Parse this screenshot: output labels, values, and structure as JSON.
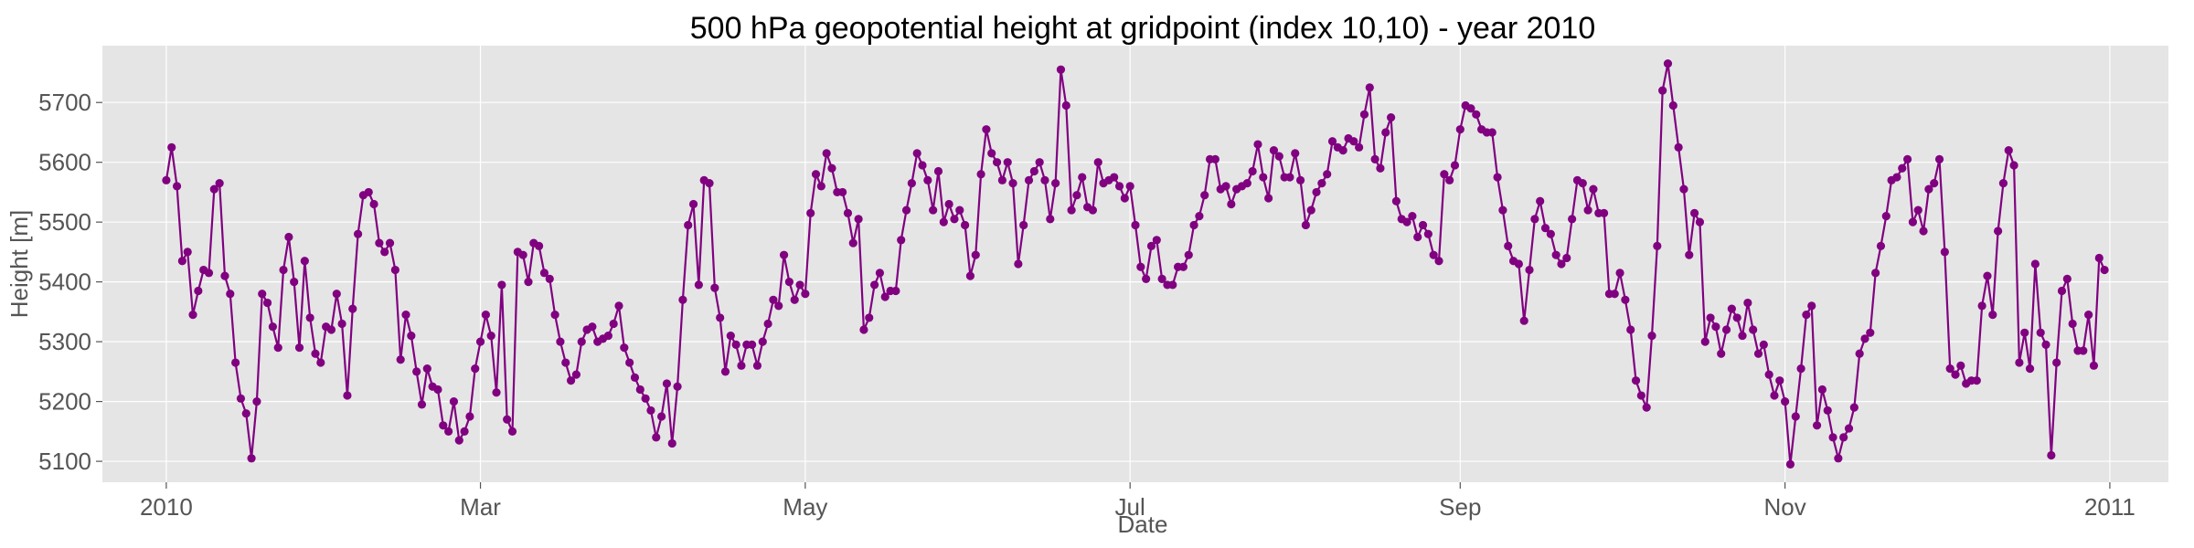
{
  "chart_data": {
    "type": "line",
    "title": "500 hPa geopotential height at gridpoint (index 10,10) - year 2010",
    "xlabel": "Date",
    "ylabel": "Height [m]",
    "x_start": "2010-01-01",
    "x_end": "2010-12-31",
    "xlim": [
      "2009-12-20",
      "2011-01-12"
    ],
    "ylim": [
      5065,
      5795
    ],
    "x_ticks": [
      {
        "date": "2010-01-01",
        "label": "2010"
      },
      {
        "date": "2010-03-01",
        "label": "Mar"
      },
      {
        "date": "2010-05-01",
        "label": "May"
      },
      {
        "date": "2010-07-01",
        "label": "Jul"
      },
      {
        "date": "2010-09-01",
        "label": "Sep"
      },
      {
        "date": "2010-11-01",
        "label": "Nov"
      },
      {
        "date": "2011-01-01",
        "label": "2011"
      }
    ],
    "y_ticks": [
      5100,
      5200,
      5300,
      5400,
      5500,
      5600,
      5700
    ],
    "grid": true,
    "marker": "circle",
    "color": "#800080",
    "background": "#e5e5e5",
    "series": [
      {
        "values": [
          5570,
          5625,
          5560,
          5435,
          5450,
          5345,
          5385,
          5420,
          5415,
          5555,
          5565,
          5410,
          5380,
          5265,
          5205,
          5180,
          5105,
          5200,
          5380,
          5365,
          5325,
          5290,
          5420,
          5475,
          5400,
          5290,
          5435,
          5340,
          5280,
          5265,
          5325,
          5320,
          5380,
          5330,
          5210,
          5355,
          5480,
          5545,
          5550,
          5530,
          5465,
          5450,
          5465,
          5420,
          5270,
          5345,
          5310,
          5250,
          5195,
          5255,
          5225,
          5220,
          5160,
          5150,
          5200,
          5135,
          5150,
          5175,
          5255,
          5300,
          5345,
          5310,
          5215,
          5395,
          5170,
          5150,
          5450,
          5445,
          5400,
          5465,
          5460,
          5415,
          5405,
          5345,
          5300,
          5265,
          5235,
          5245,
          5300,
          5320,
          5325,
          5300,
          5305,
          5310,
          5330,
          5360,
          5290,
          5265,
          5240,
          5220,
          5205,
          5185,
          5140,
          5175,
          5230,
          5130,
          5225,
          5370,
          5495,
          5530,
          5395,
          5570,
          5565,
          5390,
          5340,
          5250,
          5310,
          5295,
          5260,
          5295,
          5295,
          5260,
          5300,
          5330,
          5370,
          5360,
          5445,
          5400,
          5370,
          5395,
          5380,
          5515,
          5580,
          5560,
          5615,
          5590,
          5550,
          5550,
          5515,
          5465,
          5505,
          5320,
          5340,
          5395,
          5415,
          5375,
          5385,
          5385,
          5470,
          5520,
          5565,
          5615,
          5595,
          5570,
          5520,
          5585,
          5500,
          5530,
          5505,
          5520,
          5495,
          5410,
          5445,
          5580,
          5655,
          5615,
          5600,
          5570,
          5600,
          5565,
          5430,
          5495,
          5570,
          5585,
          5600,
          5570,
          5505,
          5565,
          5755,
          5695,
          5520,
          5545,
          5575,
          5525,
          5520,
          5600,
          5565,
          5570,
          5575,
          5560,
          5540,
          5560,
          5495,
          5425,
          5405,
          5460,
          5470,
          5405,
          5395,
          5395,
          5425,
          5425,
          5445,
          5495,
          5510,
          5545,
          5605,
          5605,
          5555,
          5560,
          5530,
          5555,
          5560,
          5565,
          5585,
          5630,
          5575,
          5540,
          5620,
          5610,
          5575,
          5575,
          5615,
          5570,
          5495,
          5520,
          5550,
          5565,
          5580,
          5635,
          5625,
          5620,
          5640,
          5635,
          5625,
          5680,
          5725,
          5605,
          5590,
          5650,
          5675,
          5535,
          5505,
          5500,
          5510,
          5475,
          5495,
          5480,
          5445,
          5435,
          5580,
          5570,
          5595,
          5655,
          5695,
          5690,
          5680,
          5655,
          5650,
          5650,
          5575,
          5520,
          5460,
          5435,
          5430,
          5335,
          5420,
          5505,
          5535,
          5490,
          5480,
          5445,
          5430,
          5440,
          5505,
          5570,
          5565,
          5520,
          5555,
          5515,
          5515,
          5380,
          5380,
          5415,
          5370,
          5320,
          5235,
          5210,
          5190,
          5310,
          5460,
          5720,
          5765,
          5695,
          5625,
          5555,
          5445,
          5515,
          5500,
          5300,
          5340,
          5325,
          5280,
          5320,
          5355,
          5340,
          5310,
          5365,
          5320,
          5280,
          5295,
          5245,
          5210,
          5235,
          5200,
          5095,
          5175,
          5255,
          5345,
          5360,
          5160,
          5220,
          5185,
          5140,
          5105,
          5140,
          5155,
          5190,
          5280,
          5305,
          5315,
          5415,
          5460,
          5510,
          5570,
          5575,
          5590,
          5605,
          5500,
          5520,
          5485,
          5555,
          5565,
          5605,
          5450,
          5255,
          5245,
          5260,
          5230,
          5235,
          5235,
          5360,
          5410,
          5345,
          5485,
          5565,
          5620,
          5595,
          5265,
          5315,
          5255,
          5430,
          5315,
          5295,
          5110,
          5265,
          5385,
          5405,
          5330,
          5285,
          5285,
          5345,
          5260,
          5440,
          5420
        ]
      }
    ]
  }
}
